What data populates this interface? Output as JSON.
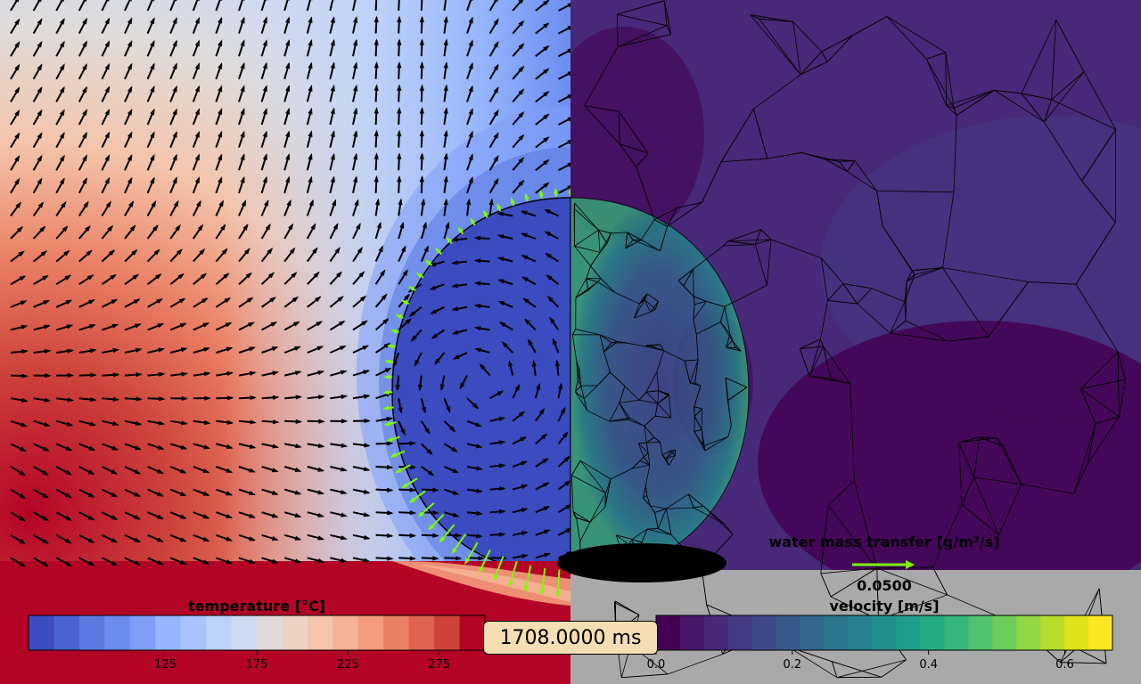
{
  "chart_data": {
    "type": "heatmap",
    "time_label": "1708.0000 ms",
    "left_panel": {
      "field": "temperature",
      "colorbar": {
        "title": "temperature [°C]",
        "ticks": [
          125,
          175,
          225,
          275
        ],
        "range": [
          50,
          300
        ],
        "colors": [
          "#3b4cc0",
          "#4a63d3",
          "#5b7be2",
          "#6b8df0",
          "#7f9ff7",
          "#94b4fc",
          "#a9c3fd",
          "#bdd1f9",
          "#d0daf1",
          "#dfdbd9",
          "#ecd2c4",
          "#f4c5ab",
          "#f6b294",
          "#f39d7e",
          "#eb8164",
          "#de6350",
          "#cd423b",
          "#b40426"
        ]
      },
      "arrow_color": "#000000",
      "flux_arrow_color": "#7cfc00"
    },
    "right_panel": {
      "field": "velocity",
      "colorbar": {
        "title": "velocity [m/s]",
        "ticks": [
          0.0,
          0.2,
          0.4,
          0.6
        ],
        "tick_labels": [
          "0.0",
          "0.2",
          "0.4",
          "0.6"
        ],
        "range": [
          0.0,
          0.67
        ],
        "colors": [
          "#440154",
          "#481668",
          "#482878",
          "#443983",
          "#3e4a89",
          "#375a8c",
          "#31688e",
          "#2b758e",
          "#26828e",
          "#21918c",
          "#1f9e89",
          "#25ab82",
          "#35b779",
          "#4ec36b",
          "#6ccd5a",
          "#90d743",
          "#b5de2b",
          "#dde318",
          "#fde725"
        ]
      },
      "background_color": "#a9a9a9"
    },
    "flux_legend": {
      "title": "water mass transfer [g/m²/s]",
      "reference_value": "0.0500",
      "arrow_color": "#7cfc00"
    }
  }
}
